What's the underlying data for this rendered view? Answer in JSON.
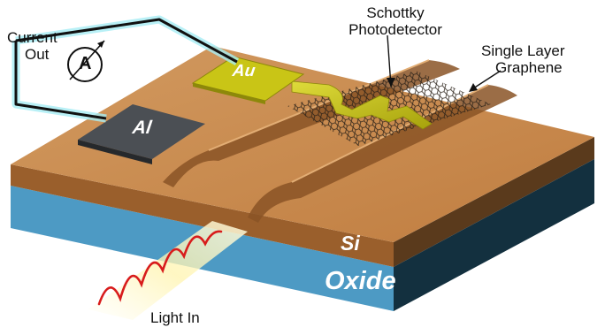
{
  "labels": {
    "current_out_line1": "Current",
    "current_out_line2": "Out",
    "ammeter_symbol": "A",
    "gold_pad": "Au",
    "aluminum_pad": "Al",
    "schottky_line1": "Schottky",
    "schottky_line2": "Photodetector",
    "graphene_line1": "Single Layer",
    "graphene_line2": "Graphene",
    "silicon_layer": "Si",
    "oxide_layer": "Oxide",
    "light_in": "Light In"
  },
  "colors": {
    "silicon_top": "#c8894c",
    "silicon_side": "#9a5f2c",
    "oxide": "#4d9ac4",
    "oxide_dark": "#2f6f96",
    "back_face": "#13303f",
    "gold": "#c9c516",
    "aluminum": "#4b4f54",
    "wire": "#111111",
    "wire_glow": "#a6ecf4",
    "light_wave": "#d81c1c",
    "light_glow": "#fff7bf"
  },
  "icons": {
    "ammeter": "ammeter-icon",
    "light_wave": "light-wave-icon",
    "graphene_mesh": "graphene-lattice-icon"
  }
}
